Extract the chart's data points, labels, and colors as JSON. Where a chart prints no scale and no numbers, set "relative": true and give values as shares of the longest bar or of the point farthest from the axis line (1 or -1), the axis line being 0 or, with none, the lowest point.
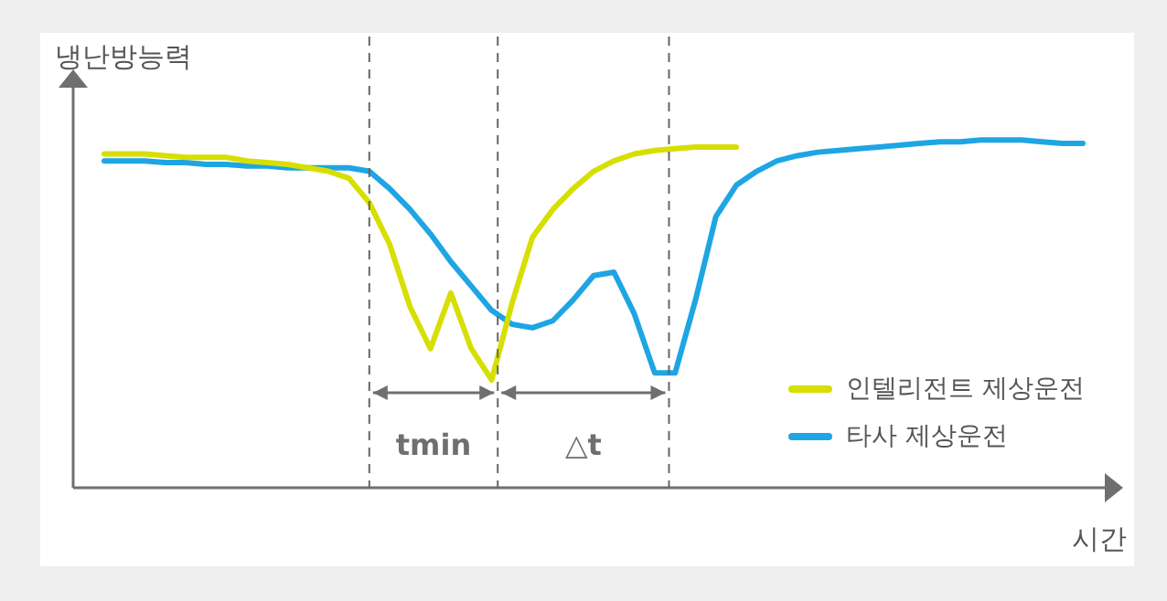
{
  "chart_data": {
    "type": "line",
    "xlabel": "시간",
    "ylabel": "냉난방능력",
    "relative": true,
    "legend": "bottom right",
    "marker": "none",
    "line_style": "solid",
    "categories": [
      null,
      null,
      null,
      null,
      null,
      null,
      null,
      null,
      null,
      null,
      null,
      null,
      null,
      null,
      null,
      null,
      null,
      null,
      null,
      null,
      null,
      null,
      null,
      null,
      null,
      null,
      null,
      null,
      null,
      null,
      null,
      null,
      null,
      null,
      null,
      null,
      null,
      null,
      null,
      null,
      null,
      null,
      null,
      null,
      null,
      null,
      null,
      null,
      null
    ],
    "series": [
      {
        "name": "인텔리전트 제상운전",
        "color": "#d6df00",
        "values": [
          0.96,
          0.96,
          0.96,
          0.955,
          0.95,
          0.95,
          0.95,
          0.94,
          0.935,
          0.93,
          0.92,
          0.91,
          0.89,
          0.82,
          0.7,
          0.52,
          0.4,
          0.56,
          0.4,
          0.31,
          0.53,
          0.72,
          0.8,
          0.86,
          0.91,
          0.94,
          0.96,
          0.97,
          0.975,
          0.98,
          0.98,
          0.98,
          null,
          null,
          null,
          null,
          null,
          null,
          null,
          null,
          null,
          null,
          null,
          null,
          null,
          null,
          null,
          null,
          null
        ]
      },
      {
        "name": "타사 제상운전",
        "color": "#1ea5e4",
        "values": [
          0.94,
          0.94,
          0.94,
          0.935,
          0.935,
          0.93,
          0.93,
          0.925,
          0.925,
          0.92,
          0.92,
          0.92,
          0.92,
          0.91,
          0.86,
          0.8,
          0.73,
          0.65,
          0.58,
          0.51,
          0.47,
          0.46,
          0.48,
          0.54,
          0.61,
          0.62,
          0.5,
          0.33,
          0.33,
          0.54,
          0.78,
          0.87,
          0.91,
          0.94,
          0.955,
          0.965,
          0.97,
          0.975,
          0.98,
          0.985,
          0.99,
          0.995,
          0.995,
          1,
          1,
          1,
          0.995,
          0.99,
          0.99
        ]
      }
    ],
    "annotations": [
      "tmin",
      "△t"
    ]
  }
}
